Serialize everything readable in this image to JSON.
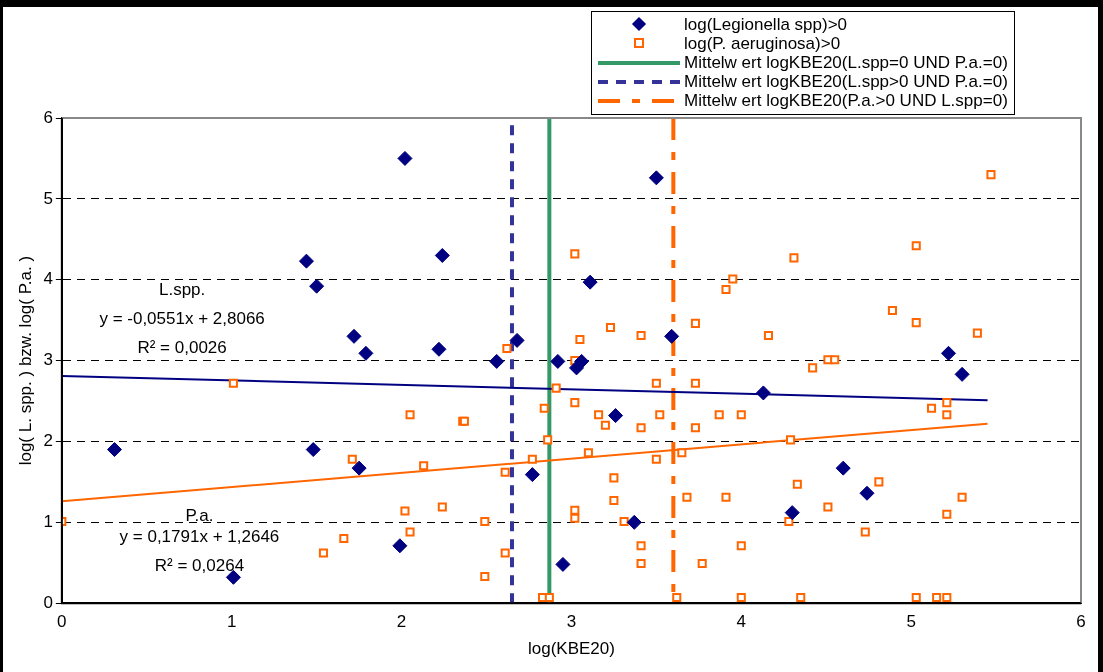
{
  "chart_data": {
    "type": "scatter",
    "xlabel": "log(KBE20)",
    "ylabel": "log( L. spp. ) bzw. log( P.a. )",
    "xlim": [
      0,
      6
    ],
    "xticks": [
      0,
      1,
      2,
      3,
      4,
      5,
      6
    ],
    "ylim": [
      0,
      6
    ],
    "yticks": [
      0,
      1,
      2,
      3,
      4,
      5,
      6
    ],
    "grid": "y",
    "legend": "top right",
    "series": [
      {
        "name": "log(Legionella spp)>0",
        "color": "#000080",
        "marker": "diamond",
        "x": [
          0.31,
          1.01,
          1.44,
          1.5,
          1.48,
          1.72,
          1.79,
          1.75,
          2.02,
          1.99,
          2.24,
          2.22,
          2.56,
          2.68,
          2.77,
          2.92,
          2.95,
          3.03,
          3.06,
          3.11,
          3.26,
          3.37,
          3.5,
          3.59,
          4.13,
          4.3,
          4.6,
          4.74,
          5.22,
          5.3
        ],
        "values": [
          1.9,
          0.32,
          4.23,
          3.92,
          1.9,
          3.3,
          3.09,
          1.67,
          5.5,
          0.71,
          4.3,
          3.14,
          2.99,
          3.25,
          1.59,
          2.99,
          0.48,
          2.91,
          2.99,
          3.97,
          2.32,
          1.0,
          5.26,
          3.3,
          2.6,
          1.12,
          1.67,
          1.36,
          3.09,
          2.83
        ]
      },
      {
        "name": "log(P. aeruginosa)>0",
        "color": "#ff6600",
        "marker": "square",
        "x": [
          0,
          1.01,
          1.71,
          1.54,
          1.66,
          2.05,
          2.13,
          2.02,
          2.05,
          2.24,
          2.36,
          2.37,
          2.49,
          2.49,
          2.61,
          2.61,
          2.62,
          2.77,
          2.84,
          2.86,
          2.83,
          2.87,
          2.91,
          3.02,
          3.05,
          3.02,
          3.02,
          3.02,
          3.02,
          3.1,
          3.16,
          3.2,
          3.23,
          3.25,
          3.25,
          3.31,
          3.41,
          3.41,
          3.41,
          3.41,
          3.5,
          3.52,
          3.5,
          3.62,
          3.65,
          3.68,
          3.73,
          3.73,
          3.73,
          3.77,
          3.87,
          3.91,
          3.95,
          3.91,
          4.0,
          4.0,
          4.0,
          4.16,
          4.31,
          4.29,
          4.33,
          4.28,
          4.35,
          4.42,
          4.51,
          4.55,
          4.51,
          4.81,
          4.73,
          4.89,
          5.03,
          5.03,
          5.03,
          5.12,
          5.15,
          5.21,
          5.21,
          5.21,
          5.21,
          5.3,
          5.39,
          5.47
        ],
        "values": [
          1.01,
          2.72,
          1.78,
          0.62,
          0.8,
          2.33,
          1.7,
          1.14,
          0.88,
          1.19,
          2.25,
          2.25,
          1.01,
          0.33,
          1.62,
          0.62,
          3.15,
          1.78,
          2.41,
          2.02,
          0.07,
          0.07,
          2.66,
          4.32,
          3.26,
          3.0,
          2.48,
          1.15,
          1.05,
          1.86,
          2.33,
          2.2,
          3.41,
          1.55,
          1.27,
          1.01,
          3.31,
          2.17,
          0.71,
          0.49,
          2.72,
          2.33,
          1.78,
          0.07,
          1.86,
          1.31,
          3.46,
          2.72,
          2.17,
          0.49,
          2.33,
          3.88,
          4.01,
          1.31,
          2.33,
          0.71,
          0.07,
          3.31,
          4.27,
          2.02,
          1.47,
          1.01,
          0.07,
          2.91,
          3.01,
          3.01,
          1.19,
          1.5,
          0.88,
          3.62,
          4.42,
          3.47,
          0.07,
          2.41,
          0.07,
          0.07,
          2.48,
          2.33,
          1.1,
          1.31,
          3.34,
          5.3
        ]
      },
      {
        "type": "line",
        "color": "#000080",
        "marker": "none",
        "line_style": "solid",
        "x": [
          0,
          5.45
        ],
        "values": [
          2.81,
          2.51
        ]
      },
      {
        "type": "line",
        "color": "#ff6600",
        "marker": "none",
        "line_style": "solid",
        "x": [
          0,
          5.45
        ],
        "values": [
          1.26,
          2.22
        ]
      },
      {
        "type": "line",
        "name": "Mittelw ert logKBE20(L.spp=0 UND P.a.=0)",
        "color": "#339966",
        "marker": "none",
        "line_style": "solid",
        "x": [
          2.87,
          2.87
        ],
        "values": [
          0,
          6
        ]
      },
      {
        "type": "line",
        "name": "Mittelw ert logKBE20(L.spp>0 UND P.a.=0)",
        "color": "#333399",
        "marker": "none",
        "line_style": "dashed",
        "x": [
          2.65,
          2.65
        ],
        "values": [
          0,
          6
        ]
      },
      {
        "type": "line",
        "name": "Mittelw ert logKBE20(P.a.>0 UND L.spp=0)",
        "color": "#ff6600",
        "marker": "none",
        "line_style": "dashdot",
        "x": [
          3.6,
          3.6
        ],
        "values": [
          6,
          0
        ]
      }
    ],
    "annotations": [
      "L.spp.",
      "y = -0,0551x + 2,8066",
      "R² = 0,0026",
      "P.a.",
      "y = 0,1791x + 1,2646",
      "R² = 0,0264"
    ]
  }
}
